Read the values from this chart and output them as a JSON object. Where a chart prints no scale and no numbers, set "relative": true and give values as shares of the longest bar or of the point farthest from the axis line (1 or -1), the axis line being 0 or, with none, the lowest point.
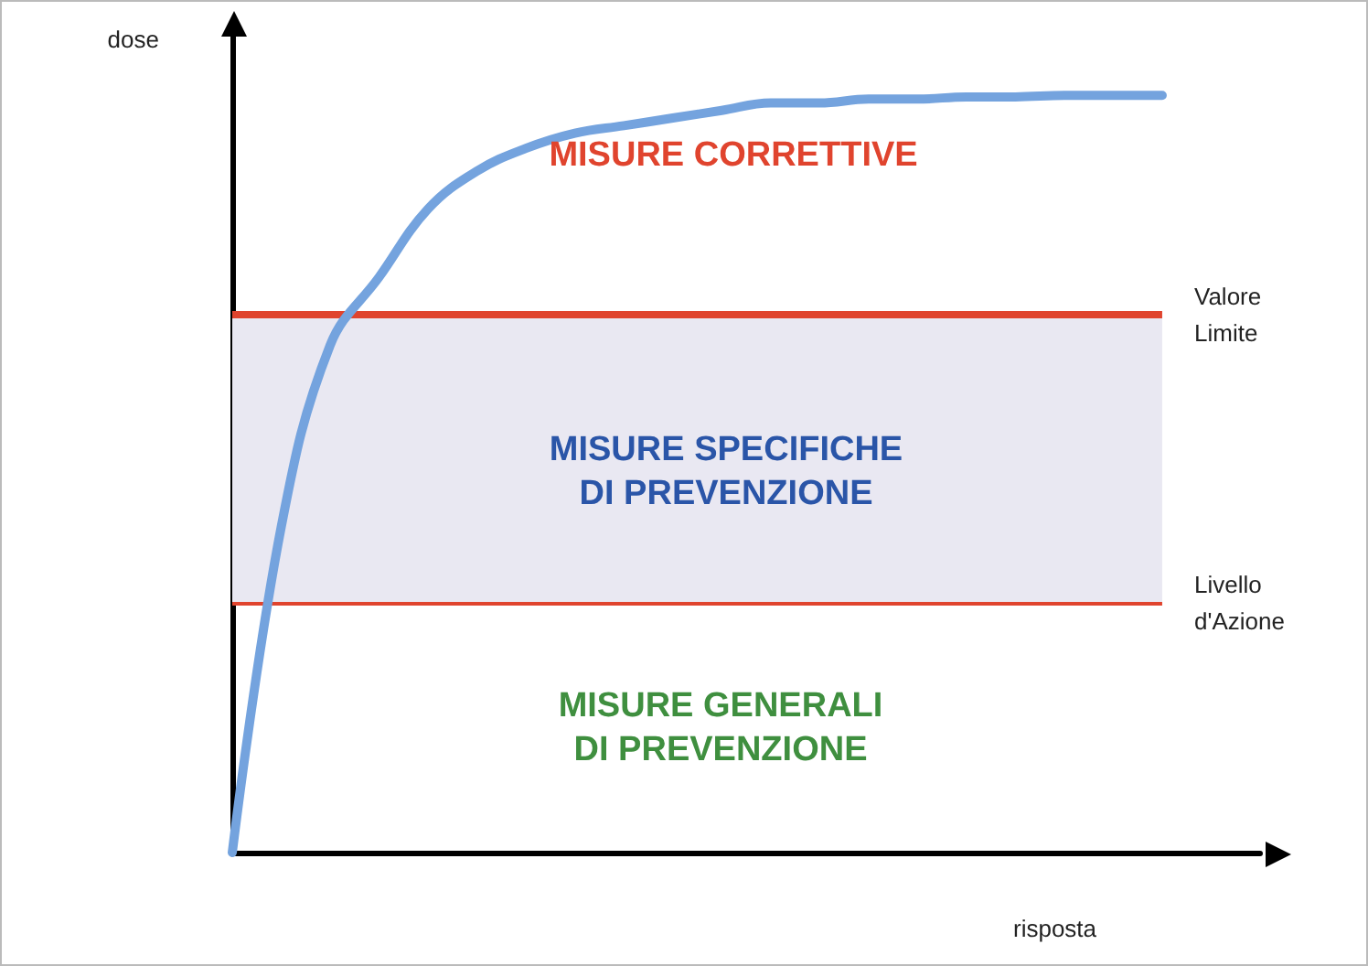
{
  "chart_data": {
    "type": "line",
    "relative": true,
    "xlabel": "risposta",
    "ylabel": "dose",
    "categories": [
      null,
      null,
      null,
      null,
      null,
      null,
      null,
      null,
      null,
      null,
      null,
      null,
      null,
      null,
      null,
      null,
      null,
      null,
      null,
      null,
      null,
      null
    ],
    "series": [
      {
        "color": "#74a3de",
        "values": [
          0,
          0.43,
          0.67,
          0.76,
          0.85,
          0.9,
          0.93,
          0.95,
          0.96,
          0.97,
          0.98,
          0.99,
          0.99,
          0.995,
          0.995,
          0.998,
          0.998,
          1,
          1,
          1,
          null,
          null
        ]
      }
    ],
    "ref_lines": [
      {
        "axis": "y",
        "value": 0.71,
        "label": "Valore\nLimite",
        "color": "#e0442e"
      },
      {
        "axis": "y",
        "value": 0.33,
        "label": "Livello\nd'Azione",
        "color": "#e0442e"
      }
    ],
    "bands": [
      {
        "axis": "y",
        "from": 0.33,
        "to": 0.71,
        "color": "#e9e8f2"
      }
    ],
    "annotations": [
      "MISURE CORRETTIVE",
      "MISURE SPECIFICHE\nDI PREVENZIONE",
      "MISURE GENERALI\nDI PREVENZIONE"
    ],
    "grid": false,
    "marker": "none",
    "line_style": "solid"
  }
}
